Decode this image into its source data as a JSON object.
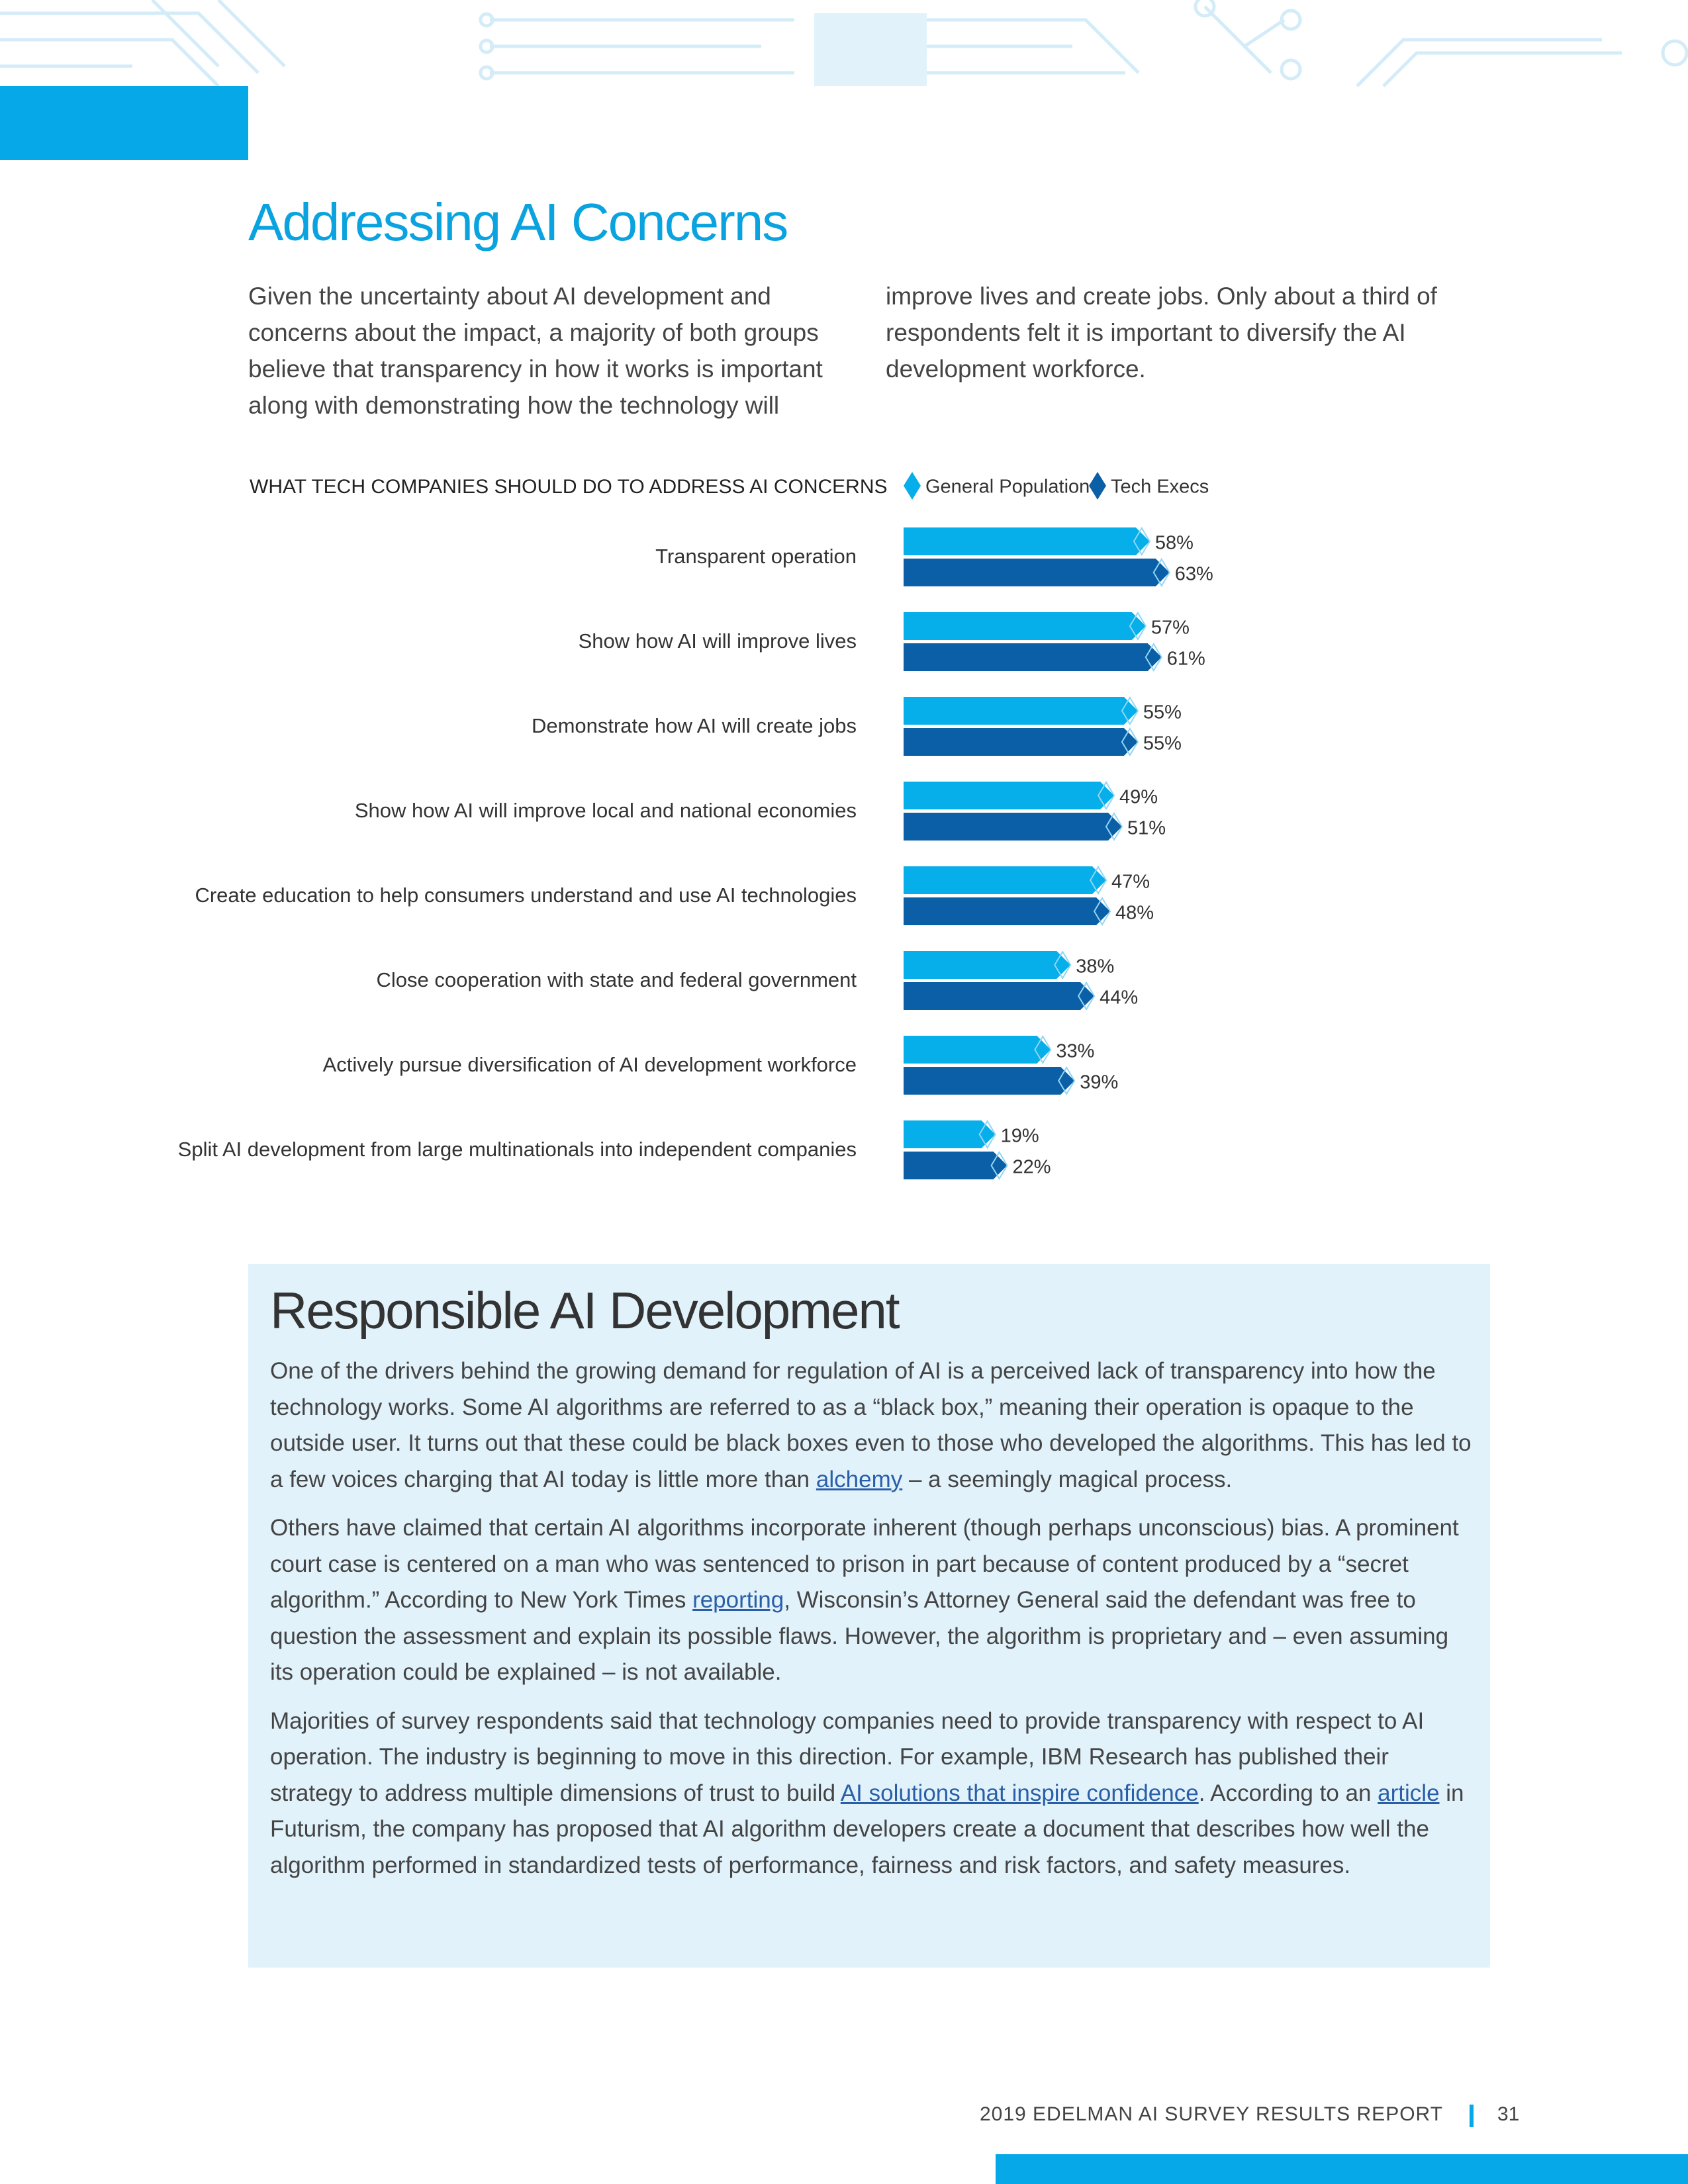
{
  "header": {
    "title": "Addressing AI Concerns"
  },
  "intro": "Given the uncertainty about AI development and concerns about the impact, a majority of both groups believe that transparency in how it works is important along with demonstrating how the technology will improve lives and create jobs. Only about a third of respondents felt it is important to diversify the AI development workforce.",
  "chart_data": {
    "type": "bar",
    "orientation": "horizontal",
    "title": "WHAT TECH COMPANIES SHOULD DO TO ADDRESS AI CONCERNS",
    "categories": [
      "Transparent operation",
      "Show how AI will improve lives",
      "Demonstrate how AI will create jobs",
      "Show how AI will improve local and national economies",
      "Create education to help consumers understand and use AI technologies",
      "Close cooperation with state and federal government",
      "Actively pursue diversification of AI development workforce",
      "Split AI development from large multinationals into independent companies"
    ],
    "series": [
      {
        "name": "General Population",
        "color": "#06aeea",
        "values": [
          58,
          57,
          55,
          49,
          47,
          38,
          33,
          19
        ],
        "value_labels": [
          "58%",
          "57%",
          "55%",
          "49%",
          "47%",
          "38%",
          "33%",
          "19%"
        ]
      },
      {
        "name": "Tech Execs",
        "color": "#0b5fa6",
        "values": [
          63,
          61,
          55,
          51,
          48,
          44,
          39,
          22
        ],
        "value_labels": [
          "63%",
          "61%",
          "55%",
          "51%",
          "48%",
          "44%",
          "39%",
          "22%"
        ]
      }
    ],
    "legend": "top"
  },
  "responsible": {
    "title": "Responsible AI Development",
    "paragraphs": [
      [
        {
          "text": "One of the drivers behind the growing demand for regulation of AI is a perceived lack of transparency into how the technology works. Some AI algorithms are referred to as a “black box,” meaning their operation is opaque to the outside user. It turns out that these could be black boxes even to those who developed the algorithms. This has led to a few voices charging that AI today is little more than ",
          "link": false
        },
        {
          "text": "alchemy",
          "link": true
        },
        {
          "text": " – a seemingly magical process.",
          "link": false
        }
      ],
      [
        {
          "text": "Others have claimed that certain AI algorithms incorporate inherent (though perhaps unconscious) bias. A prominent court case is centered on a man who was sentenced to prison in part because of content produced by a “secret algorithm.” According to New York Times ",
          "link": false
        },
        {
          "text": "reporting",
          "link": true
        },
        {
          "text": ", Wisconsin’s Attorney General said the defendant was free to question the assessment and explain its possible flaws. However, the algorithm is proprietary and – even assuming its operation could be explained – is not available.",
          "link": false
        }
      ],
      [
        {
          "text": "Majorities of survey respondents said that technology companies need to provide transparency with respect to AI operation. The industry is beginning to move in this direction. For example, IBM Research has published their strategy to address multiple dimensions of trust to build ",
          "link": false
        },
        {
          "text": "AI solutions that inspire confidence",
          "link": true
        },
        {
          "text": ". According to an ",
          "link": false
        },
        {
          "text": "article",
          "link": true
        },
        {
          "text": " in Futurism, the company has proposed that AI algorithm developers create a document that describes how well the algorithm performed in standardized tests of performance, fairness and risk factors, and safety measures.",
          "link": false
        }
      ]
    ]
  },
  "footer": {
    "report": "2019 EDELMAN AI SURVEY RESULTS REPORT",
    "page": "31"
  }
}
